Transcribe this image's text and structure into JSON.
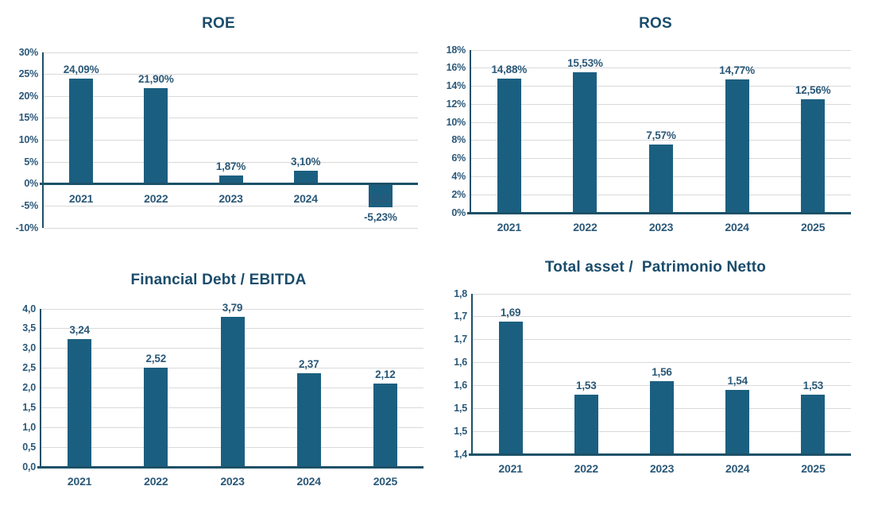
{
  "page": {
    "background": "#FFFFFF"
  },
  "colors": {
    "bar": "#1B5F80",
    "title": "#1A4C6B",
    "label": "#2A5878",
    "grid": "#D9D9D9",
    "axis": "#1D5168"
  },
  "chart_data": [
    {
      "id": "roe",
      "type": "bar",
      "title": "ROE",
      "categories": [
        "2021",
        "2022",
        "2023",
        "2024",
        "2025"
      ],
      "values": [
        24.09,
        21.9,
        1.87,
        3.1,
        -5.23
      ],
      "value_labels": [
        "24,09%",
        "21,90%",
        "1,87%",
        "3,10%",
        "-5,23%"
      ],
      "ylim": [
        -10,
        30
      ],
      "base": 0,
      "grid": true,
      "yticks": [
        {
          "v": 30,
          "t": "30%"
        },
        {
          "v": 25,
          "t": "25%"
        },
        {
          "v": 20,
          "t": "20%"
        },
        {
          "v": 15,
          "t": "15%"
        },
        {
          "v": 10,
          "t": "10%"
        },
        {
          "v": 5,
          "t": "5%"
        },
        {
          "v": 0,
          "t": "0%"
        },
        {
          "v": -5,
          "t": "-5%"
        },
        {
          "v": -10,
          "t": "-10%"
        }
      ]
    },
    {
      "id": "ros",
      "type": "bar",
      "title": "ROS",
      "categories": [
        "2021",
        "2022",
        "2023",
        "2024",
        "2025"
      ],
      "values": [
        14.88,
        15.53,
        7.57,
        14.77,
        12.56
      ],
      "value_labels": [
        "14,88%",
        "15,53%",
        "7,57%",
        "14,77%",
        "12,56%"
      ],
      "ylim": [
        0,
        18
      ],
      "base": 0,
      "grid": true,
      "yticks": [
        {
          "v": 18,
          "t": "18%"
        },
        {
          "v": 16,
          "t": "16%"
        },
        {
          "v": 14,
          "t": "14%"
        },
        {
          "v": 12,
          "t": "12%"
        },
        {
          "v": 10,
          "t": "10%"
        },
        {
          "v": 8,
          "t": "8%"
        },
        {
          "v": 6,
          "t": "6%"
        },
        {
          "v": 4,
          "t": "4%"
        },
        {
          "v": 2,
          "t": "2%"
        },
        {
          "v": 0,
          "t": "0%"
        }
      ]
    },
    {
      "id": "financial-debt-ebitda",
      "type": "bar",
      "title": "Financial Debt / EBITDA",
      "categories": [
        "2021",
        "2022",
        "2023",
        "2024",
        "2025"
      ],
      "values": [
        3.24,
        2.52,
        3.79,
        2.37,
        2.12
      ],
      "value_labels": [
        "3,24",
        "2,52",
        "3,79",
        "2,37",
        "2,12"
      ],
      "ylim": [
        0,
        4
      ],
      "base": 0,
      "grid": true,
      "yticks": [
        {
          "v": 4.0,
          "t": "4,0"
        },
        {
          "v": 3.5,
          "t": "3,5"
        },
        {
          "v": 3.0,
          "t": "3,0"
        },
        {
          "v": 2.5,
          "t": "2,5"
        },
        {
          "v": 2.0,
          "t": "2,0"
        },
        {
          "v": 1.5,
          "t": "1,5"
        },
        {
          "v": 1.0,
          "t": "1,0"
        },
        {
          "v": 0.5,
          "t": "0,5"
        },
        {
          "v": 0.0,
          "t": "0,0"
        }
      ]
    },
    {
      "id": "total-asset-patrimonio-netto",
      "type": "bar",
      "title": "Total asset /  Patrimonio Netto",
      "categories": [
        "2021",
        "2022",
        "2023",
        "2024",
        "2025"
      ],
      "values": [
        1.69,
        1.53,
        1.56,
        1.54,
        1.53
      ],
      "value_labels": [
        "1,69",
        "1,53",
        "1,56",
        "1,54",
        "1,53"
      ],
      "ylim": [
        1.4,
        1.75
      ],
      "base": 1.4,
      "grid": true,
      "yticks": [
        {
          "v": 1.75,
          "t": "1,8"
        },
        {
          "v": 1.7,
          "t": "1,7"
        },
        {
          "v": 1.65,
          "t": "1,7"
        },
        {
          "v": 1.6,
          "t": "1,6"
        },
        {
          "v": 1.55,
          "t": "1,6"
        },
        {
          "v": 1.5,
          "t": "1,5"
        },
        {
          "v": 1.45,
          "t": "1,5"
        },
        {
          "v": 1.4,
          "t": "1,4"
        }
      ]
    }
  ]
}
